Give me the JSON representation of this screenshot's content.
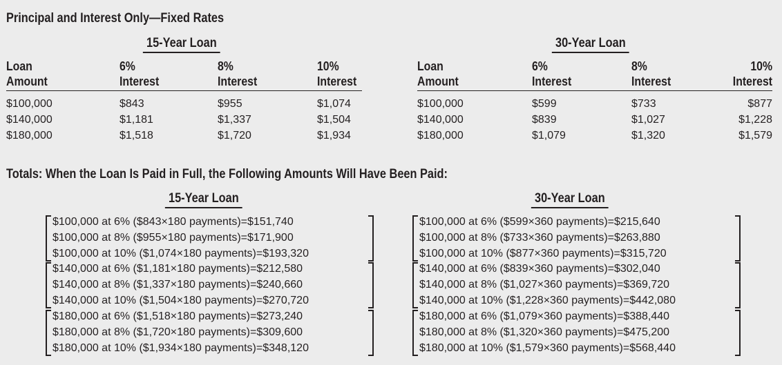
{
  "title": "Principal and Interest Only—Fixed Rates",
  "loan15": "15-Year Loan",
  "loan30": "30-Year Loan",
  "headers": {
    "amount_top": "Loan",
    "amount_bottom": "Amount",
    "r6_top": "6%",
    "r8_top": "8%",
    "r10_top": "10%",
    "interest": "Interest"
  },
  "table15": {
    "amounts": [
      "$100,000",
      "$140,000",
      "$180,000"
    ],
    "r6": [
      "$843",
      "$1,181",
      "$1,518"
    ],
    "r8": [
      "$955",
      "$1,337",
      "$1,720"
    ],
    "r10": [
      "$1,074",
      "$1,504",
      "$1,934"
    ]
  },
  "table30": {
    "amounts": [
      "$100,000",
      "$140,000",
      "$180,000"
    ],
    "r6": [
      "$599",
      "$839",
      "$1,079"
    ],
    "r8": [
      "$733",
      "$1,027",
      "$1,320"
    ],
    "r10": [
      "$877",
      "$1,228",
      "$1,579"
    ]
  },
  "totals_title": "Totals: When the Loan Is Paid in Full, the Following Amounts Will Have Been Paid:",
  "totals15": [
    [
      "$100,000 at 6% ($843×180 payments)=$151,740",
      "$100,000 at 8% ($955×180 payments)=$171,900",
      "$100,000 at 10% ($1,074×180 payments)=$193,320"
    ],
    [
      "$140,000 at 6% ($1,181×180 payments)=$212,580",
      "$140,000 at 8% ($1,337×180 payments)=$240,660",
      "$140,000 at 10% ($1,504×180 payments)=$270,720"
    ],
    [
      "$180,000 at 6% ($1,518×180 payments)=$273,240",
      "$180,000 at 8% ($1,720×180 payments)=$309,600",
      "$180,000 at 10% ($1,934×180 payments)=$348,120"
    ]
  ],
  "totals30": [
    [
      "$100,000 at 6% ($599×360 payments)=$215,640",
      "$100,000 at 8% ($733×360 payments)=$263,880",
      "$100,000 at 10% ($877×360 payments)=$315,720"
    ],
    [
      "$140,000 at 6% ($839×360 payments)=$302,040",
      "$140,000 at 8% ($1,027×360 payments)=$369,720",
      "$140,000 at 10% ($1,228×360 payments)=$442,080"
    ],
    [
      "$180,000 at 6% ($1,079×360 payments)=$388,440",
      "$180,000 at 8% ($1,320×360 payments)=$475,200",
      "$180,000 at 10% ($1,579×360 payments)=$568,440"
    ]
  ]
}
